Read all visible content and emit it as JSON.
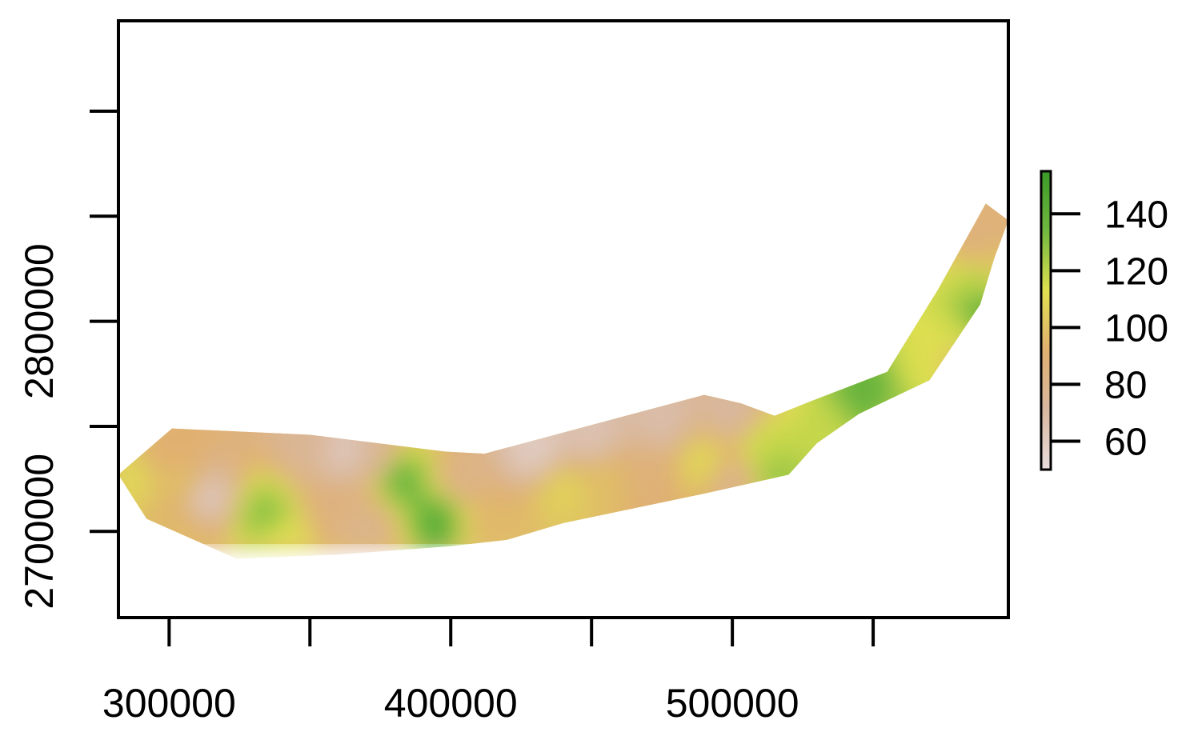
{
  "chart_data": {
    "type": "heatmap",
    "title": "",
    "xlabel": "",
    "ylabel": "",
    "xlim": [
      282000,
      598000
    ],
    "ylim": [
      2659000,
      2943000
    ],
    "x_ticks": [
      300000,
      350000,
      400000,
      450000,
      500000,
      550000
    ],
    "x_tick_labels": [
      "300000",
      "",
      "400000",
      "",
      "500000",
      ""
    ],
    "y_ticks": [
      2700000,
      2750000,
      2800000,
      2850000,
      2900000
    ],
    "y_tick_labels": [
      "2700000",
      "",
      "2800000",
      "",
      ""
    ],
    "grid": false,
    "colorbar": {
      "range": [
        50,
        155
      ],
      "ticks": [
        60,
        80,
        100,
        120,
        140
      ],
      "tick_labels": [
        "60",
        "80",
        "100",
        "120",
        "140"
      ],
      "colors": [
        "#e8dcdc",
        "#d8b8a0",
        "#e0b070",
        "#e0e050",
        "#70b840",
        "#3a9a28"
      ]
    },
    "region_outline": [
      [
        282000,
        2727000
      ],
      [
        301000,
        2749000
      ],
      [
        350000,
        2746000
      ],
      [
        398000,
        2738000
      ],
      [
        412000,
        2737000
      ],
      [
        490000,
        2765000
      ],
      [
        503000,
        2761000
      ],
      [
        515000,
        2755000
      ],
      [
        528000,
        2762000
      ],
      [
        555000,
        2776000
      ],
      [
        573000,
        2815000
      ],
      [
        590000,
        2856000
      ],
      [
        598000,
        2848000
      ],
      [
        593000,
        2830000
      ],
      [
        588000,
        2808000
      ],
      [
        570000,
        2772000
      ],
      [
        545000,
        2756000
      ],
      [
        530000,
        2742000
      ],
      [
        520000,
        2727000
      ],
      [
        490000,
        2718000
      ],
      [
        440000,
        2704000
      ],
      [
        420000,
        2696000
      ],
      [
        400000,
        2693000
      ],
      [
        360000,
        2689000
      ],
      [
        324000,
        2687000
      ],
      [
        292000,
        2706000
      ],
      [
        282000,
        2727000
      ]
    ],
    "control_points": [
      {
        "x": 286000,
        "y": 2726000,
        "value": 108
      },
      {
        "x": 298000,
        "y": 2738000,
        "value": 92
      },
      {
        "x": 305000,
        "y": 2722000,
        "value": 98
      },
      {
        "x": 313000,
        "y": 2716000,
        "value": 62
      },
      {
        "x": 305000,
        "y": 2700000,
        "value": 96
      },
      {
        "x": 334000,
        "y": 2708000,
        "value": 128
      },
      {
        "x": 340000,
        "y": 2695000,
        "value": 112
      },
      {
        "x": 350000,
        "y": 2740000,
        "value": 76
      },
      {
        "x": 362000,
        "y": 2738000,
        "value": 62
      },
      {
        "x": 372000,
        "y": 2735000,
        "value": 74
      },
      {
        "x": 358000,
        "y": 2712000,
        "value": 86
      },
      {
        "x": 370000,
        "y": 2702000,
        "value": 80
      },
      {
        "x": 382000,
        "y": 2725000,
        "value": 135
      },
      {
        "x": 396000,
        "y": 2705000,
        "value": 140
      },
      {
        "x": 405000,
        "y": 2725000,
        "value": 82
      },
      {
        "x": 412000,
        "y": 2705000,
        "value": 96
      },
      {
        "x": 430000,
        "y": 2738000,
        "value": 60
      },
      {
        "x": 440000,
        "y": 2720000,
        "value": 106
      },
      {
        "x": 455000,
        "y": 2724000,
        "value": 98
      },
      {
        "x": 450000,
        "y": 2745000,
        "value": 65
      },
      {
        "x": 475000,
        "y": 2752000,
        "value": 68
      },
      {
        "x": 470000,
        "y": 2728000,
        "value": 88
      },
      {
        "x": 490000,
        "y": 2733000,
        "value": 108
      },
      {
        "x": 500000,
        "y": 2756000,
        "value": 72
      },
      {
        "x": 500000,
        "y": 2725000,
        "value": 80
      },
      {
        "x": 512000,
        "y": 2740000,
        "value": 118
      },
      {
        "x": 515000,
        "y": 2728000,
        "value": 126
      },
      {
        "x": 532000,
        "y": 2745000,
        "value": 118
      },
      {
        "x": 550000,
        "y": 2765000,
        "value": 138
      },
      {
        "x": 558000,
        "y": 2757000,
        "value": 124
      },
      {
        "x": 568000,
        "y": 2775000,
        "value": 114
      },
      {
        "x": 580000,
        "y": 2790000,
        "value": 116
      },
      {
        "x": 583000,
        "y": 2782000,
        "value": 84
      },
      {
        "x": 590000,
        "y": 2803000,
        "value": 140
      },
      {
        "x": 588000,
        "y": 2818000,
        "value": 122
      },
      {
        "x": 592000,
        "y": 2828000,
        "value": 100
      },
      {
        "x": 588000,
        "y": 2838000,
        "value": 86
      },
      {
        "x": 596000,
        "y": 2848000,
        "value": 88
      }
    ]
  }
}
